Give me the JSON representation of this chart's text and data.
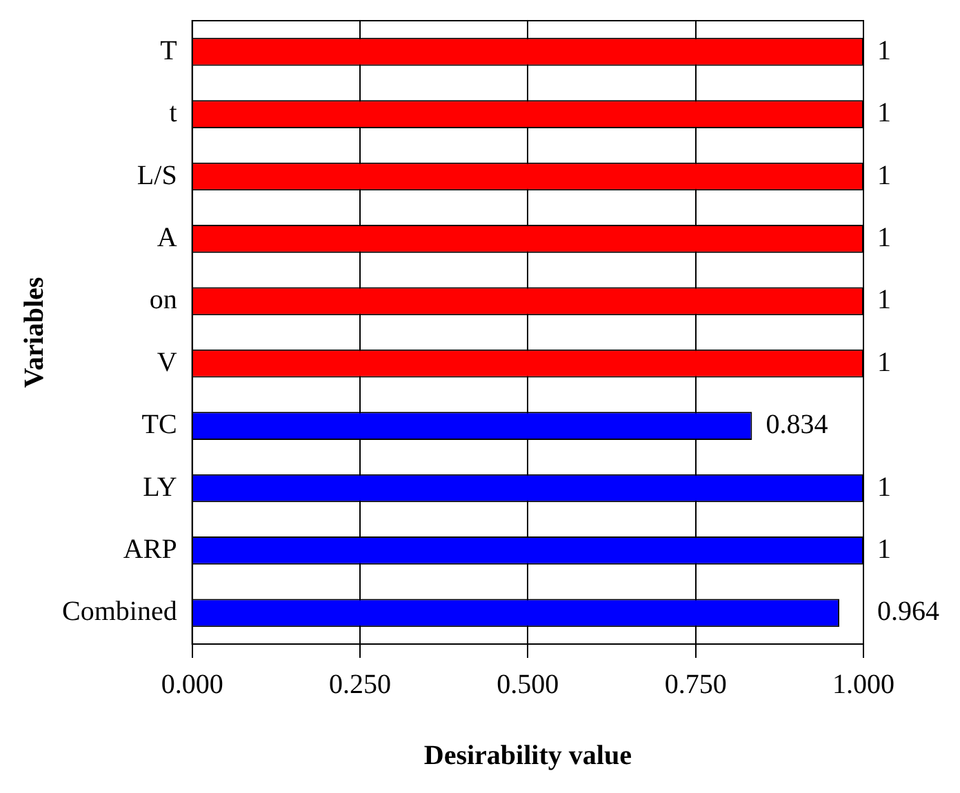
{
  "chart_data": {
    "type": "bar",
    "orientation": "horizontal",
    "xlabel": "Desirability value",
    "ylabel": "Variables",
    "categories": [
      "T",
      "t",
      "L/S",
      "A",
      "on",
      "V",
      "TC",
      "LY",
      "ARP",
      "Combined"
    ],
    "values": [
      1,
      1,
      1,
      1,
      1,
      1,
      0.834,
      1,
      1,
      0.964
    ],
    "colors": [
      "#ff0000",
      "#ff0000",
      "#ff0000",
      "#ff0000",
      "#ff0000",
      "#ff0000",
      "#0000ff",
      "#0000ff",
      "#0000ff",
      "#0000ff"
    ],
    "xlim": [
      0,
      1
    ],
    "xticks": [
      {
        "value": 0,
        "label": "0.000"
      },
      {
        "value": 0.25,
        "label": "0.250"
      },
      {
        "value": 0.5,
        "label": "0.500"
      },
      {
        "value": 0.75,
        "label": "0.750"
      },
      {
        "value": 1,
        "label": "1.000"
      }
    ],
    "grid": "x",
    "data_labels": true,
    "legend": false
  }
}
